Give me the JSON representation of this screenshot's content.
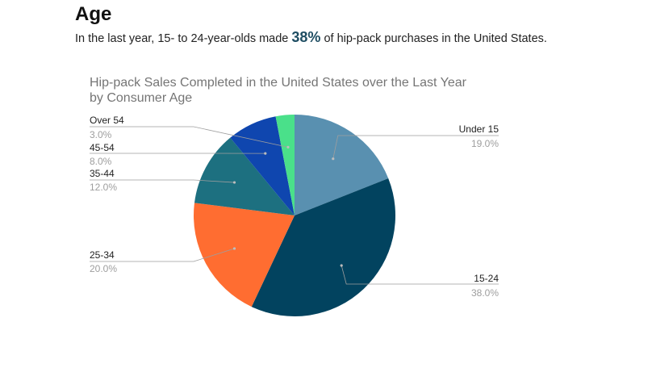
{
  "header": {
    "title": "Age",
    "subtitle_before": "In the last year, 15- to 24-year-olds made ",
    "subtitle_highlight": "38%",
    "subtitle_after": " of hip-pack purchases in the United States."
  },
  "chart_data": {
    "type": "pie",
    "title": "Hip-pack Sales Completed in the United States over the Last Year by Consumer Age",
    "slices": [
      {
        "label": "Under 15",
        "value": 19.0,
        "pct_label": "19.0%",
        "color": "#5990b0"
      },
      {
        "label": "15-24",
        "value": 38.0,
        "pct_label": "38.0%",
        "color": "#02435f"
      },
      {
        "label": "25-34",
        "value": 20.0,
        "pct_label": "20.0%",
        "color": "#ff6d31"
      },
      {
        "label": "35-44",
        "value": 12.0,
        "pct_label": "12.0%",
        "color": "#1d7080"
      },
      {
        "label": "45-54",
        "value": 8.0,
        "pct_label": "8.0%",
        "color": "#0f46af"
      },
      {
        "label": "Over 54",
        "value": 3.0,
        "pct_label": "3.0%",
        "color": "#4ae08a"
      }
    ],
    "start_angle": "12 o'clock",
    "direction": "clockwise",
    "legend": "labeled leader lines"
  }
}
